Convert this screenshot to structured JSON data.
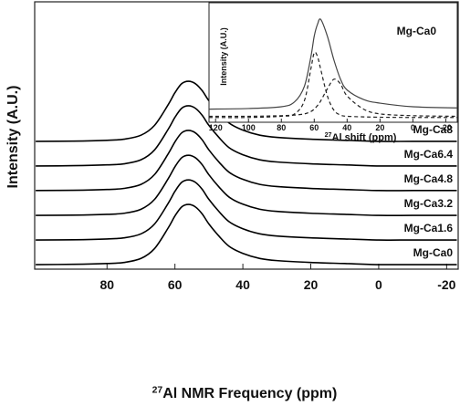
{
  "chart_data": [
    {
      "type": "line",
      "xlabel_superscript": "27",
      "xlabel": "Al NMR Frequency (ppm)",
      "ylabel": "Intensity (A.U.)",
      "xlim": [
        101.3,
        -23.4
      ],
      "ylim": [
        0,
        100
      ],
      "xticks": [
        80,
        60,
        40,
        20,
        0,
        -20
      ],
      "x": [
        101,
        90,
        80,
        75,
        70,
        66,
        62,
        60,
        58,
        56,
        54,
        52,
        50,
        47,
        44,
        40,
        35,
        30,
        20,
        10,
        0,
        -10,
        -23
      ],
      "series": [
        {
          "name": "Mg-Ca0",
          "color": "#000000",
          "values": [
            1.7,
            1.8,
            2.1,
            2.5,
            4.0,
            7.7,
            15.4,
            19.9,
            23.3,
            24.2,
            23.3,
            20.7,
            16.9,
            12.3,
            8.5,
            5.9,
            4.0,
            3.2,
            2.5,
            2.1,
            1.7,
            1.7,
            1.7
          ]
        },
        {
          "name": "Mg-Ca1.6",
          "color": "#000000",
          "values": [
            10.9,
            11.0,
            11.3,
            11.7,
            13.2,
            16.9,
            24.6,
            29.1,
            32.5,
            33.4,
            32.5,
            29.9,
            26.1,
            21.5,
            17.7,
            15.1,
            13.2,
            12.4,
            11.7,
            11.3,
            10.9,
            10.9,
            10.9
          ]
        },
        {
          "name": "Mg-Ca3.2",
          "color": "#000000",
          "values": [
            20.1,
            20.2,
            20.5,
            20.9,
            22.4,
            26.1,
            33.8,
            38.3,
            41.7,
            42.6,
            41.7,
            39.1,
            35.3,
            30.7,
            26.9,
            24.3,
            22.4,
            21.6,
            20.9,
            20.5,
            20.1,
            20.1,
            20.1
          ]
        },
        {
          "name": "Mg-Ca4.8",
          "color": "#000000",
          "values": [
            29.4,
            29.5,
            29.8,
            30.2,
            31.7,
            35.4,
            43.1,
            47.6,
            51.0,
            51.9,
            51.0,
            48.4,
            44.6,
            40.0,
            36.2,
            33.6,
            31.7,
            30.9,
            30.2,
            29.8,
            29.4,
            29.4,
            29.4
          ]
        },
        {
          "name": "Mg-Ca6.4",
          "color": "#000000",
          "values": [
            38.6,
            38.7,
            39.0,
            39.4,
            40.9,
            44.6,
            52.3,
            56.8,
            60.2,
            61.1,
            60.2,
            57.6,
            53.8,
            49.2,
            45.4,
            42.8,
            40.9,
            40.1,
            39.4,
            39.0,
            38.6,
            38.6,
            38.6
          ]
        },
        {
          "name": "Mg-Ca8",
          "color": "#000000",
          "values": [
            47.8,
            47.9,
            48.2,
            48.6,
            50.1,
            53.8,
            61.5,
            66.0,
            69.4,
            70.3,
            69.4,
            66.8,
            63.0,
            58.4,
            54.6,
            52.0,
            50.1,
            49.3,
            48.6,
            48.2,
            47.8,
            47.8,
            47.8
          ]
        }
      ]
    },
    {
      "type": "line",
      "annotation": "Mg-Ca0",
      "xlabel_superscript": "27",
      "xlabel": "Al shift (ppm)",
      "ylabel": "Intensity (A.U.)",
      "xlim": [
        124,
        -27
      ],
      "ylim": [
        0,
        100
      ],
      "xticks": [
        120,
        100,
        80,
        60,
        40,
        20,
        0,
        -20
      ],
      "x": [
        124,
        100,
        80,
        72,
        66,
        62,
        60,
        58,
        56,
        52,
        48,
        44,
        40,
        30,
        20,
        0,
        -27
      ],
      "series": [
        {
          "color": "#444444",
          "dash": false,
          "values": [
            11,
            11.5,
            13,
            17,
            30,
            55,
            72,
            82,
            86,
            72,
            52,
            36,
            27,
            19,
            16,
            13,
            12
          ]
        },
        {
          "color": "#222222",
          "dash": true,
          "values": [
            4,
            4,
            5,
            7,
            18,
            45,
            58,
            55,
            44,
            22,
            10,
            6,
            5,
            4.5,
            4.2,
            4,
            4
          ]
        },
        {
          "color": "#222222",
          "dash": true,
          "values": [
            5,
            5,
            5.5,
            6,
            7,
            9,
            11,
            14,
            18,
            28,
            36,
            32,
            22,
            11,
            7,
            5.5,
            5
          ]
        }
      ]
    }
  ]
}
